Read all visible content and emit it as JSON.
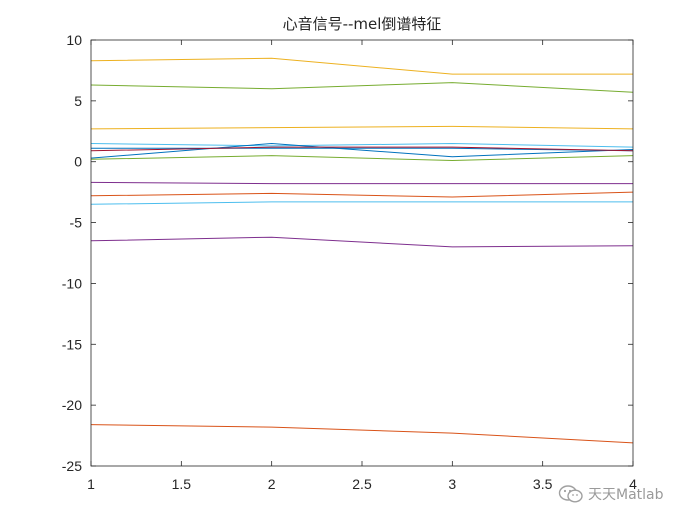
{
  "chart_data": {
    "type": "line",
    "title": "心音信号--mel倒谱特征",
    "xlabel": "",
    "ylabel": "",
    "xlim": [
      1,
      4
    ],
    "ylim": [
      -25,
      10
    ],
    "xticks": [
      1,
      1.5,
      2,
      2.5,
      3,
      3.5,
      4
    ],
    "yticks": [
      10,
      5,
      0,
      -5,
      -10,
      -15,
      -20,
      -25
    ],
    "xtick_labels": [
      "1",
      "1.5",
      "2",
      "2.5",
      "3",
      "3.5",
      "4"
    ],
    "ytick_labels": [
      "10",
      "5",
      "0",
      "-5",
      "-10",
      "-15",
      "-20",
      "-25"
    ],
    "grid": false,
    "legend": "none",
    "x": [
      1,
      2,
      3,
      4
    ],
    "series": [
      {
        "color": "#EDB120",
        "values": [
          8.3,
          8.5,
          7.2,
          7.2
        ]
      },
      {
        "color": "#77AC30",
        "values": [
          6.3,
          6.0,
          6.5,
          5.7
        ]
      },
      {
        "color": "#EDB120",
        "values": [
          2.7,
          2.8,
          2.9,
          2.7
        ]
      },
      {
        "color": "#4DBEEE",
        "values": [
          1.5,
          1.3,
          1.5,
          1.2
        ]
      },
      {
        "color": "#0072BD",
        "values": [
          0.3,
          1.5,
          0.4,
          1.0
        ]
      },
      {
        "color": "#0072BD",
        "values": [
          1.1,
          1.1,
          1.1,
          0.9
        ]
      },
      {
        "color": "#A2142F",
        "values": [
          0.9,
          1.2,
          1.2,
          0.9
        ]
      },
      {
        "color": "#77AC30",
        "values": [
          0.2,
          0.5,
          0.1,
          0.5
        ]
      },
      {
        "color": "#7E2F8E",
        "values": [
          -1.7,
          -1.8,
          -1.8,
          -1.8
        ]
      },
      {
        "color": "#D95319",
        "values": [
          -2.8,
          -2.6,
          -2.9,
          -2.5
        ]
      },
      {
        "color": "#4DBEEE",
        "values": [
          -3.5,
          -3.3,
          -3.3,
          -3.3
        ]
      },
      {
        "color": "#7E2F8E",
        "values": [
          -6.5,
          -6.2,
          -7.0,
          -6.9
        ]
      },
      {
        "color": "#D95319",
        "values": [
          -21.6,
          -21.8,
          -22.3,
          -23.1
        ]
      }
    ]
  },
  "watermark": {
    "text": "天天Matlab",
    "icon": "wechat-icon"
  }
}
